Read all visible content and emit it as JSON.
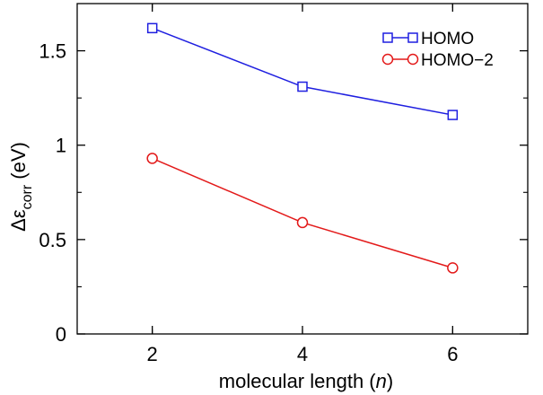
{
  "chart_data": {
    "type": "line",
    "title": "",
    "x": [
      2,
      4,
      6
    ],
    "xlim": [
      1,
      7
    ],
    "ylim": [
      0,
      1.75
    ],
    "xticks": [
      2,
      4,
      6
    ],
    "yticks": [
      0,
      0.5,
      1,
      1.5
    ],
    "xtick_labels": [
      "2",
      "4",
      "6"
    ],
    "ytick_labels": [
      "0",
      "0.5",
      "1",
      "1.5"
    ],
    "xlabel": {
      "main": "molecular length (",
      "var": "n",
      "close": ")"
    },
    "ylabel": {
      "delta": "Δ",
      "epsilon": "ε",
      "subscript": "corr",
      "unit": " (eV)"
    },
    "grid": false,
    "legend_position": "top-right",
    "series": [
      {
        "name": "HOMO",
        "color": "#1f1fe0",
        "marker": "square",
        "values": [
          1.62,
          1.31,
          1.16
        ]
      },
      {
        "name": "HOMO−2",
        "color": "#e31a1a",
        "marker": "circle",
        "values": [
          0.93,
          0.59,
          0.35
        ]
      }
    ]
  }
}
